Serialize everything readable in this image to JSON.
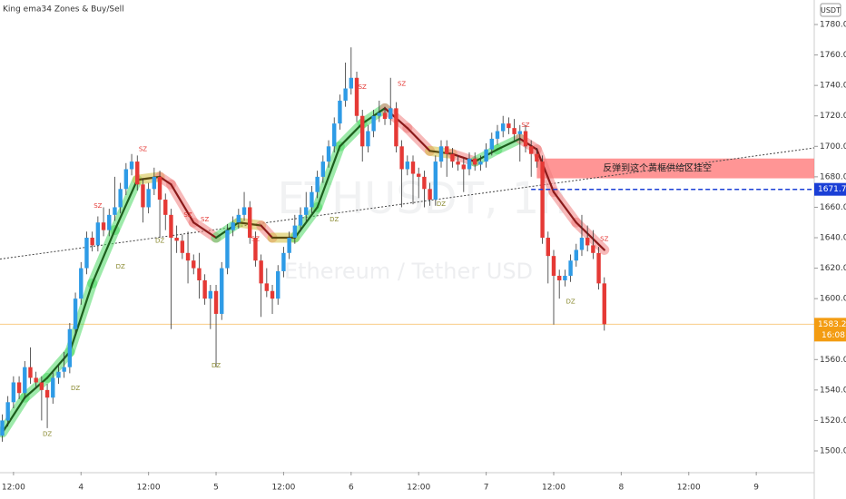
{
  "chart_data": {
    "type": "candlestick",
    "title": "King ema34 Zones & Buy/Sell",
    "watermark_symbol": "ETHUSDT, 1h",
    "watermark_name": "Ethereum / Tether USD",
    "currency": "USDT",
    "up_color": "#2e9be6",
    "down_color": "#e53935",
    "open": [
      1510,
      1520,
      1532,
      1545,
      1538,
      1555,
      1548,
      1545,
      1540,
      1535,
      1548,
      1552,
      1555,
      1580,
      1600,
      1620,
      1640,
      1635,
      1650,
      1645,
      1655,
      1660,
      1672,
      1685,
      1690,
      1675,
      1660,
      1672,
      1680,
      1665,
      1655,
      1640,
      1638,
      1630,
      1625,
      1620,
      1612,
      1600,
      1605,
      1590,
      1620,
      1645,
      1650,
      1655,
      1660,
      1640,
      1625,
      1610,
      1605,
      1600,
      1618,
      1630,
      1640,
      1648,
      1655,
      1660,
      1670,
      1680,
      1690,
      1700,
      1715,
      1730,
      1738,
      1745,
      1720,
      1700,
      1710,
      1720,
      1722,
      1718,
      1725,
      1700,
      1685,
      1690,
      1682,
      1680,
      1672,
      1665,
      1690,
      1700,
      1695,
      1690,
      1688,
      1685,
      1692,
      1688,
      1690,
      1698,
      1705,
      1710,
      1715,
      1712,
      1708,
      1710,
      1700,
      1695,
      1690,
      1640,
      1628,
      1615,
      1612,
      1615,
      1625,
      1632,
      1640,
      1635,
      1630,
      1610
    ],
    "high": [
      1524,
      1536,
      1549,
      1549,
      1559,
      1568,
      1552,
      1549,
      1544,
      1552,
      1556,
      1565,
      1584,
      1604,
      1624,
      1644,
      1644,
      1654,
      1660,
      1659,
      1680,
      1676,
      1689,
      1695,
      1694,
      1679,
      1676,
      1686,
      1684,
      1669,
      1659,
      1648,
      1642,
      1644,
      1629,
      1630,
      1616,
      1609,
      1609,
      1624,
      1649,
      1654,
      1659,
      1670,
      1664,
      1644,
      1629,
      1620,
      1609,
      1622,
      1634,
      1644,
      1655,
      1660,
      1670,
      1674,
      1684,
      1694,
      1704,
      1719,
      1734,
      1755,
      1765,
      1749,
      1724,
      1714,
      1724,
      1730,
      1726,
      1745,
      1729,
      1704,
      1694,
      1694,
      1686,
      1684,
      1676,
      1694,
      1704,
      1704,
      1699,
      1694,
      1692,
      1696,
      1696,
      1694,
      1702,
      1709,
      1714,
      1720,
      1719,
      1718,
      1714,
      1714,
      1704,
      1699,
      1694,
      1644,
      1632,
      1619,
      1619,
      1629,
      1636,
      1655,
      1648,
      1645,
      1634,
      1614
    ],
    "low": [
      1506,
      1516,
      1528,
      1534,
      1534,
      1544,
      1541,
      1520,
      1515,
      1531,
      1544,
      1548,
      1551,
      1576,
      1596,
      1616,
      1631,
      1631,
      1641,
      1641,
      1651,
      1656,
      1668,
      1681,
      1671,
      1650,
      1656,
      1668,
      1640,
      1645,
      1580,
      1630,
      1626,
      1610,
      1616,
      1600,
      1596,
      1580,
      1555,
      1586,
      1616,
      1641,
      1646,
      1651,
      1636,
      1621,
      1588,
      1601,
      1590,
      1596,
      1614,
      1626,
      1636,
      1644,
      1651,
      1656,
      1666,
      1676,
      1686,
      1696,
      1711,
      1726,
      1734,
      1716,
      1690,
      1696,
      1706,
      1716,
      1714,
      1714,
      1696,
      1660,
      1681,
      1662,
      1666,
      1660,
      1661,
      1661,
      1686,
      1680,
      1686,
      1684,
      1670,
      1681,
      1684,
      1684,
      1686,
      1694,
      1701,
      1706,
      1708,
      1704,
      1690,
      1696,
      1680,
      1686,
      1636,
      1610,
      1583,
      1600,
      1608,
      1611,
      1621,
      1628,
      1631,
      1626,
      1606,
      1579
    ],
    "close": [
      1520,
      1532,
      1545,
      1538,
      1555,
      1548,
      1545,
      1540,
      1535,
      1548,
      1552,
      1555,
      1580,
      1600,
      1620,
      1640,
      1635,
      1650,
      1645,
      1655,
      1660,
      1672,
      1685,
      1690,
      1675,
      1660,
      1672,
      1680,
      1665,
      1655,
      1640,
      1638,
      1630,
      1625,
      1620,
      1612,
      1600,
      1605,
      1590,
      1620,
      1645,
      1650,
      1655,
      1660,
      1640,
      1625,
      1610,
      1605,
      1600,
      1618,
      1630,
      1640,
      1648,
      1655,
      1660,
      1670,
      1680,
      1690,
      1700,
      1715,
      1730,
      1738,
      1745,
      1720,
      1700,
      1710,
      1720,
      1722,
      1718,
      1725,
      1700,
      1685,
      1690,
      1682,
      1680,
      1672,
      1665,
      1690,
      1700,
      1695,
      1690,
      1688,
      1685,
      1692,
      1688,
      1690,
      1698,
      1705,
      1710,
      1715,
      1712,
      1708,
      1710,
      1700,
      1695,
      1690,
      1640,
      1628,
      1615,
      1612,
      1615,
      1625,
      1632,
      1640,
      1635,
      1630,
      1610,
      1583.2
    ],
    "xlim": [
      -0.4,
      144.3
    ],
    "ylim": [
      1486.3,
      1796.1
    ],
    "xticks": [
      {
        "value": 2,
        "label": "12:00"
      },
      {
        "value": 14,
        "label": "4"
      },
      {
        "value": 26,
        "label": "12:00"
      },
      {
        "value": 38,
        "label": "5"
      },
      {
        "value": 50,
        "label": "12:00"
      },
      {
        "value": 62,
        "label": "6"
      },
      {
        "value": 74,
        "label": "12:00"
      },
      {
        "value": 86,
        "label": "7"
      },
      {
        "value": 98,
        "label": "12:00"
      },
      {
        "value": 110,
        "label": "8"
      },
      {
        "value": 122,
        "label": "12:00"
      },
      {
        "value": 134,
        "label": "9"
      }
    ],
    "yticks": [
      {
        "value": 1500,
        "label": "1500.00"
      },
      {
        "value": 1520,
        "label": "1520.00"
      },
      {
        "value": 1540,
        "label": "1540.00"
      },
      {
        "value": 1560,
        "label": "1560.00"
      },
      {
        "value": 1580,
        "label": "1580.00"
      },
      {
        "value": 1600,
        "label": "1600.00"
      },
      {
        "value": 1620,
        "label": "1620.00"
      },
      {
        "value": 1640,
        "label": "1640.00"
      },
      {
        "value": 1660,
        "label": "1660.00"
      },
      {
        "value": 1680,
        "label": "1680.00"
      },
      {
        "value": 1700,
        "label": "1700.00"
      },
      {
        "value": 1720,
        "label": "1720.00"
      },
      {
        "value": 1740,
        "label": "1740.00"
      },
      {
        "value": 1760,
        "label": "1760.00"
      },
      {
        "value": 1780,
        "label": "1780.00"
      }
    ],
    "ema": {
      "x": [
        0,
        4,
        8,
        12,
        16,
        20,
        24,
        28,
        30,
        34,
        38,
        42,
        46,
        48,
        52,
        56,
        60,
        64,
        68,
        72,
        76,
        80,
        84,
        88,
        92,
        95,
        98,
        102,
        107
      ],
      "values": [
        1512,
        1535,
        1548,
        1565,
        1610,
        1645,
        1678,
        1680,
        1675,
        1650,
        1640,
        1650,
        1648,
        1640,
        1640,
        1660,
        1700,
        1715,
        1725,
        1712,
        1697,
        1695,
        1690,
        1698,
        1705,
        1698,
        1670,
        1650,
        1632
      ],
      "rise_color": "#4cd964",
      "fall_color": "#f08080",
      "flat_color": "#d4c040"
    },
    "trendline": {
      "x": [
        -0.4,
        144.3
      ],
      "values": [
        1626,
        1699
      ]
    },
    "zone": {
      "x": [
        95,
        144.3
      ],
      "values": [
        1679,
        1692
      ],
      "label": "反弹到这个黄框供给区挂空",
      "color": "#ff7b7b"
    },
    "price_line": {
      "value": 1671.77,
      "x": 94,
      "color": "#1a3fd6"
    },
    "last_price": {
      "value": 1583.2,
      "label": "1583.20",
      "countdown": "16:08",
      "color": "#f39c12"
    },
    "signal_colors": {
      "SZ": "#e53935",
      "DZ": "#8a8a30"
    },
    "signals": [
      {
        "label": "SZ",
        "x": 17,
        "y": 1661
      },
      {
        "label": "SZ",
        "x": 25,
        "y": 1698
      },
      {
        "label": "SZ",
        "x": 33,
        "y": 1655
      },
      {
        "label": "SZ",
        "x": 36,
        "y": 1652
      },
      {
        "label": "SZ",
        "x": 45,
        "y": 1639
      },
      {
        "label": "SZ",
        "x": 64,
        "y": 1739
      },
      {
        "label": "SZ",
        "x": 71,
        "y": 1741
      },
      {
        "label": "SZ",
        "x": 93,
        "y": 1714
      },
      {
        "label": "SZ",
        "x": 107,
        "y": 1639
      },
      {
        "label": "DZ",
        "x": 8,
        "y": 1511
      },
      {
        "label": "DZ",
        "x": 13,
        "y": 1541
      },
      {
        "label": "DZ",
        "x": 21,
        "y": 1621
      },
      {
        "label": "DZ",
        "x": 28,
        "y": 1638
      },
      {
        "label": "DZ",
        "x": 38,
        "y": 1556
      },
      {
        "label": "DZ",
        "x": 59,
        "y": 1652
      },
      {
        "label": "DZ",
        "x": 78,
        "y": 1662
      },
      {
        "label": "DZ",
        "x": 101,
        "y": 1598
      }
    ]
  }
}
